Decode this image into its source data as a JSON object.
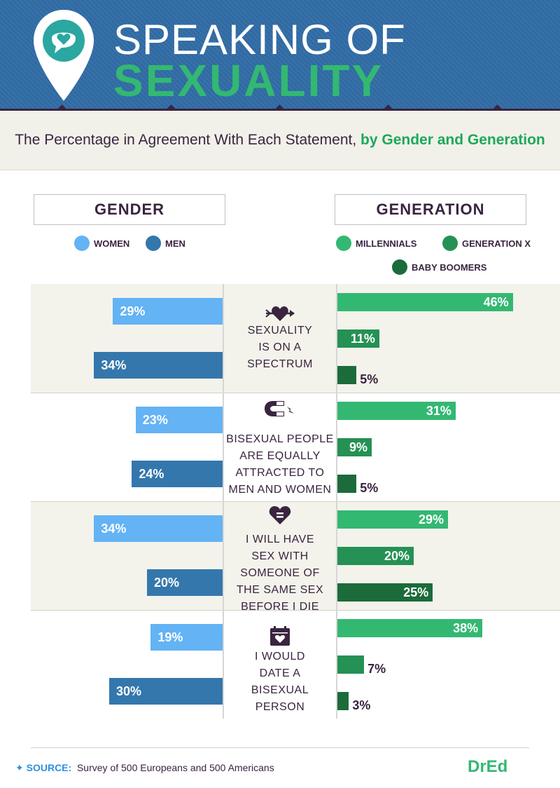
{
  "header": {
    "title_line1": "SPEAKING OF",
    "title_line2": "SEXUALITY",
    "subtitle_plain": "The Percentage in Agreement With Each Statement, ",
    "subtitle_highlight": "by Gender and Generation"
  },
  "panels": {
    "gender_title": "GENDER",
    "generation_title": "GENERATION"
  },
  "legend": {
    "gender": [
      {
        "label": "WOMEN",
        "color": "#63b3f5"
      },
      {
        "label": "MEN",
        "color": "#3477ad"
      }
    ],
    "generation": [
      {
        "label": "MILLENNIALS",
        "color": "#33b872"
      },
      {
        "label": "GENERATION X",
        "color": "#259154"
      },
      {
        "label": "BABY BOOMERS",
        "color": "#1c6b3b"
      }
    ]
  },
  "icons": [
    "heart-arrow-icon",
    "magnet-icon",
    "heart-equals-icon",
    "calendar-heart-icon",
    "map-pin-chat-heart-icon"
  ],
  "chart_data": {
    "type": "bar",
    "unit": "%",
    "categories": [
      "SEXUALITY IS ON A SPECTRUM",
      "BISEXUAL PEOPLE ARE EQUALLY ATTRACTED TO MEN AND WOMEN",
      "I WILL HAVE SEX WITH SOMEONE OF THE SAME SEX BEFORE I DIE",
      "I WOULD DATE A BISEXUAL PERSON"
    ],
    "statement_lines": [
      [
        "SEXUALITY",
        "IS ON A",
        "SPECTRUM"
      ],
      [
        "BISEXUAL PEOPLE",
        "ARE EQUALLY",
        "ATTRACTED TO",
        "MEN AND WOMEN"
      ],
      [
        "I WILL HAVE",
        "SEX WITH",
        "SOMEONE OF",
        "THE SAME SEX",
        "BEFORE I DIE"
      ],
      [
        "I WOULD",
        "DATE A",
        "BISEXUAL",
        "PERSON"
      ]
    ],
    "gender_series": [
      {
        "name": "WOMEN",
        "values": [
          29,
          23,
          34,
          19
        ],
        "labels": [
          "29%",
          "23%",
          "34%",
          "19%"
        ]
      },
      {
        "name": "MEN",
        "values": [
          34,
          24,
          20,
          30
        ],
        "labels": [
          "34%",
          "24%",
          "20%",
          "30%"
        ]
      }
    ],
    "generation_series": [
      {
        "name": "MILLENNIALS",
        "values": [
          46,
          31,
          29,
          38
        ],
        "labels": [
          "46%",
          "31%",
          "29%",
          "38%"
        ]
      },
      {
        "name": "GENERATION X",
        "values": [
          11,
          9,
          20,
          7
        ],
        "labels": [
          "11%",
          "9%",
          "20%",
          "7%"
        ]
      },
      {
        "name": "BABY BOOMERS",
        "values": [
          5,
          5,
          25,
          3
        ],
        "labels": [
          "5%",
          "5%",
          "25%",
          "3%"
        ]
      }
    ]
  },
  "footer": {
    "source_label": "SOURCE:",
    "source_text": "Survey of 500 Europeans and 500 Americans",
    "brand": "DrEd"
  }
}
